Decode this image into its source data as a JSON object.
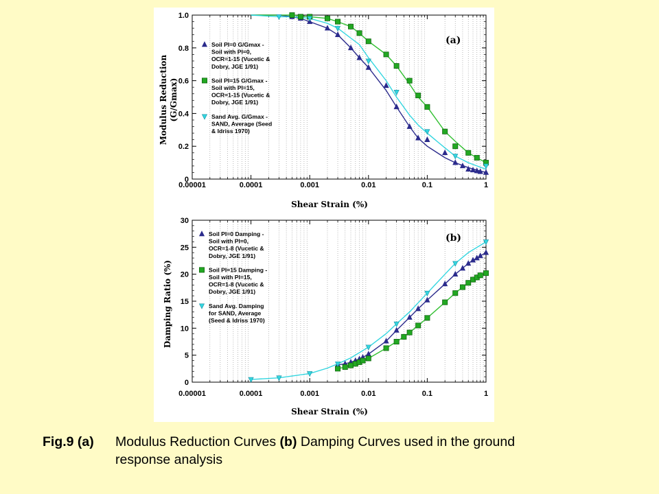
{
  "figure": {
    "caption": {
      "lead": "Fig.9 (a)",
      "part_a_text": "Modulus Reduction Curves",
      "part_b_tag": "(b)",
      "part_b_text": "Damping Curves used in the ground",
      "line2": "response analysis"
    }
  },
  "colors": {
    "page_background": "#fffbc6",
    "panel_background": "#ffffff",
    "pi0": "#2b2b8c",
    "pi15": "#2fbf2f",
    "sand": "#33d6e0",
    "pi15_marker": "#22a822",
    "pi15_marker_edge": "#116611"
  },
  "chart_data": [
    {
      "type": "line",
      "panel_label": "(a)",
      "xlabel": "Shear Strain (%)",
      "ylabel_line1": "Modulus Reduction",
      "ylabel_line2": "(G/Gmax)",
      "xscale": "log",
      "xlim": [
        1e-05,
        1
      ],
      "ylim": [
        0,
        1
      ],
      "x_ticks": [
        "0.00001",
        "0.0001",
        "0.001",
        "0.01",
        "0.1",
        "1"
      ],
      "y_ticks": [
        "0",
        "0.2",
        "0.4",
        "0.6",
        "0.8",
        "1.0"
      ],
      "grid": "vertical dotted lines at minor log ticks",
      "legend_position": "left-middle",
      "series": [
        {
          "key": "pi0",
          "marker": "triangle-up",
          "legend_lines": [
            "Soil PI=0  G/Gmax -",
            "Soil with PI=0,",
            "OCR=1-15 (Vucetic &",
            "Dobry, JGE 1/91)"
          ],
          "x": [
            0.0001,
            0.0003,
            0.0005,
            0.0007,
            0.001,
            0.002,
            0.003,
            0.005,
            0.007,
            0.01,
            0.02,
            0.03,
            0.05,
            0.07,
            0.1,
            0.2,
            0.3,
            0.5,
            0.7,
            1
          ],
          "y": [
            1.0,
            1.0,
            0.99,
            0.98,
            0.96,
            0.92,
            0.88,
            0.8,
            0.74,
            0.68,
            0.54,
            0.44,
            0.32,
            0.25,
            0.2,
            0.13,
            0.1,
            0.07,
            0.055,
            0.04
          ],
          "marker_x": [
            0.0005,
            0.0007,
            0.001,
            0.002,
            0.003,
            0.005,
            0.007,
            0.01,
            0.02,
            0.03,
            0.05,
            0.07,
            0.1,
            0.2,
            0.3,
            0.4,
            0.5,
            0.6,
            0.7,
            0.8,
            1
          ],
          "marker_y": [
            0.99,
            0.98,
            0.96,
            0.92,
            0.88,
            0.8,
            0.74,
            0.68,
            0.57,
            0.44,
            0.32,
            0.25,
            0.24,
            0.16,
            0.1,
            0.08,
            0.06,
            0.055,
            0.05,
            0.045,
            0.04
          ]
        },
        {
          "key": "pi15",
          "marker": "square",
          "legend_lines": [
            "Soil PI=15  G/Gmax -",
            "Soil with PI=15,",
            "OCR=1-15 (Vucetic &",
            "Dobry, JGE 1/91)"
          ],
          "x": [
            0.0001,
            0.0003,
            0.0005,
            0.001,
            0.002,
            0.003,
            0.005,
            0.007,
            0.01,
            0.02,
            0.03,
            0.05,
            0.07,
            0.1,
            0.2,
            0.3,
            0.5,
            0.7,
            1
          ],
          "y": [
            1.0,
            1.0,
            1.0,
            0.99,
            0.98,
            0.96,
            0.93,
            0.89,
            0.84,
            0.76,
            0.69,
            0.58,
            0.5,
            0.44,
            0.29,
            0.23,
            0.16,
            0.13,
            0.1
          ],
          "marker_x": [
            0.0005,
            0.0007,
            0.001,
            0.002,
            0.003,
            0.005,
            0.007,
            0.01,
            0.02,
            0.03,
            0.05,
            0.07,
            0.1,
            0.2,
            0.3,
            0.5,
            0.7,
            1
          ],
          "marker_y": [
            1.0,
            0.99,
            0.99,
            0.98,
            0.96,
            0.93,
            0.89,
            0.84,
            0.76,
            0.69,
            0.6,
            0.51,
            0.44,
            0.29,
            0.2,
            0.16,
            0.13,
            0.1
          ]
        },
        {
          "key": "sand",
          "marker": "triangle-down",
          "legend_lines": [
            "Sand Avg.  G/Gmax -",
            "SAND, Average (Seed",
            "& Idriss 1970)"
          ],
          "x": [
            0.0001,
            0.0003,
            0.0005,
            0.001,
            0.002,
            0.003,
            0.005,
            0.007,
            0.01,
            0.02,
            0.03,
            0.05,
            0.07,
            0.1,
            0.2,
            0.3,
            0.5,
            1
          ],
          "y": [
            1.0,
            0.99,
            0.99,
            0.98,
            0.95,
            0.92,
            0.86,
            0.82,
            0.74,
            0.6,
            0.5,
            0.39,
            0.33,
            0.28,
            0.19,
            0.14,
            0.1,
            0.06
          ],
          "marker_x": [
            0.0003,
            0.001,
            0.003,
            0.01,
            0.03,
            0.1,
            0.3,
            1
          ],
          "marker_y": [
            0.99,
            0.98,
            0.92,
            0.72,
            0.53,
            0.29,
            0.14,
            0.08
          ]
        }
      ]
    },
    {
      "type": "line",
      "panel_label": "(b)",
      "xlabel": "Shear Strain (%)",
      "ylabel_line1": "Damping Ratio (%)",
      "xscale": "log",
      "xlim": [
        1e-05,
        1
      ],
      "ylim": [
        0,
        30
      ],
      "x_ticks": [
        "0.00001",
        "0.0001",
        "0.001",
        "0.01",
        "0.1",
        "1"
      ],
      "y_ticks": [
        "0",
        "5",
        "10",
        "15",
        "20",
        "25",
        "30"
      ],
      "grid": "vertical dotted lines at minor log ticks",
      "legend_position": "top-left",
      "series": [
        {
          "key": "pi0",
          "marker": "triangle-up",
          "legend_lines": [
            "Soil PI=0  Damping -",
            "Soil with PI=0,",
            "OCR=1-8 (Vucetic &",
            "Dobry, JGE 1/91)"
          ],
          "x": [
            0.003,
            0.004,
            0.005,
            0.006,
            0.007,
            0.008,
            0.01,
            0.02,
            0.03,
            0.05,
            0.07,
            0.1,
            0.2,
            0.3,
            0.4,
            0.5,
            0.6,
            0.7,
            0.8,
            1
          ],
          "y": [
            3.2,
            3.4,
            3.7,
            4.0,
            4.3,
            4.6,
            5.2,
            7.6,
            9.6,
            12.0,
            13.6,
            15.2,
            18.2,
            20.0,
            21.1,
            22.0,
            22.6,
            23.0,
            23.4,
            24.0
          ],
          "marker_x": [
            0.003,
            0.004,
            0.005,
            0.006,
            0.007,
            0.008,
            0.01,
            0.02,
            0.03,
            0.05,
            0.07,
            0.1,
            0.2,
            0.3,
            0.4,
            0.5,
            0.6,
            0.7,
            0.8,
            1
          ],
          "marker_y": [
            3.2,
            3.4,
            3.7,
            4.0,
            4.3,
            4.6,
            5.2,
            7.6,
            9.6,
            12.0,
            13.6,
            15.2,
            18.2,
            20.0,
            21.1,
            22.0,
            22.6,
            23.0,
            23.4,
            24.0
          ]
        },
        {
          "key": "pi15",
          "marker": "square",
          "legend_lines": [
            "Soil PI=15 Damping -",
            "Soil with PI=15,",
            "OCR=1-8 (Vucetic &",
            "Dobry, JGE 1/91)"
          ],
          "x": [
            0.003,
            0.004,
            0.005,
            0.006,
            0.007,
            0.008,
            0.01,
            0.02,
            0.03,
            0.04,
            0.05,
            0.07,
            0.1,
            0.2,
            0.3,
            0.4,
            0.5,
            0.6,
            0.7,
            0.8,
            1
          ],
          "y": [
            2.5,
            2.8,
            3.1,
            3.4,
            3.7,
            4.0,
            4.4,
            6.3,
            7.5,
            8.4,
            9.2,
            10.5,
            11.9,
            14.8,
            16.5,
            17.6,
            18.4,
            19.0,
            19.4,
            19.8,
            20.2
          ],
          "marker_x": [
            0.003,
            0.004,
            0.005,
            0.006,
            0.007,
            0.008,
            0.01,
            0.02,
            0.03,
            0.04,
            0.05,
            0.07,
            0.1,
            0.2,
            0.3,
            0.4,
            0.5,
            0.6,
            0.7,
            0.8,
            1
          ],
          "marker_y": [
            2.5,
            2.8,
            3.1,
            3.4,
            3.7,
            4.0,
            4.4,
            6.3,
            7.5,
            8.4,
            9.2,
            10.5,
            11.9,
            14.8,
            16.5,
            17.6,
            18.4,
            19.0,
            19.4,
            19.8,
            20.2
          ]
        },
        {
          "key": "sand",
          "marker": "triangle-down",
          "legend_lines": [
            "Sand Avg.  Damping",
            "for SAND, Average",
            "(Seed & Idriss 1970)"
          ],
          "x": [
            0.0001,
            0.0003,
            0.001,
            0.002,
            0.003,
            0.005,
            0.01,
            0.02,
            0.03,
            0.05,
            0.1,
            0.2,
            0.3,
            0.5,
            1
          ],
          "y": [
            0.5,
            0.8,
            1.6,
            2.6,
            3.4,
            4.5,
            6.5,
            9.0,
            10.8,
            13.0,
            16.5,
            20.0,
            22.0,
            24.0,
            26.0
          ],
          "marker_x": [
            0.0001,
            0.0003,
            0.001,
            0.003,
            0.01,
            0.03,
            0.1,
            0.3,
            1
          ],
          "marker_y": [
            0.5,
            0.8,
            1.6,
            3.4,
            6.5,
            10.8,
            16.5,
            22.0,
            26.0
          ]
        }
      ]
    }
  ]
}
